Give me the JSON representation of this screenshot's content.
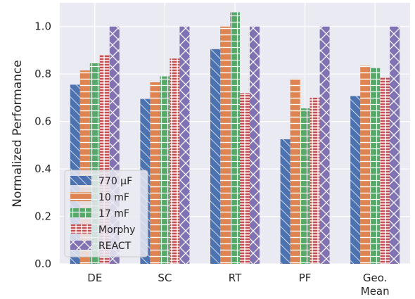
{
  "chart_data": {
    "type": "bar",
    "title": "",
    "xlabel": "",
    "ylabel": "Normalized Performance",
    "ylim": [
      0,
      1.1
    ],
    "yticks": [
      "0.0",
      "0.2",
      "0.4",
      "0.6",
      "0.8",
      "1.0"
    ],
    "categories": [
      [
        "DE"
      ],
      [
        "SC"
      ],
      [
        "RT"
      ],
      [
        "PF"
      ],
      [
        "Geo.",
        "Mean"
      ]
    ],
    "series": [
      {
        "name": "770 μF",
        "color": "#4c72b0",
        "hatch": "diag",
        "values": [
          0.755,
          0.695,
          0.905,
          0.525,
          0.707
        ]
      },
      {
        "name": "10 mF",
        "color": "#dd8452",
        "hatch": "horiz",
        "values": [
          0.815,
          0.765,
          1.0,
          0.78,
          0.835
        ]
      },
      {
        "name": "17 mF",
        "color": "#55a868",
        "hatch": "grid",
        "values": [
          0.845,
          0.79,
          1.06,
          0.655,
          0.825
        ]
      },
      {
        "name": "Morphy",
        "color": "#c44e52",
        "hatch": "brick",
        "values": [
          0.88,
          0.865,
          0.72,
          0.7,
          0.785
        ]
      },
      {
        "name": "REACT",
        "color": "#8172b3",
        "hatch": "x",
        "values": [
          1.0,
          1.0,
          1.0,
          1.0,
          1.0
        ]
      }
    ],
    "grid": true,
    "legend_position": "lower-left"
  }
}
